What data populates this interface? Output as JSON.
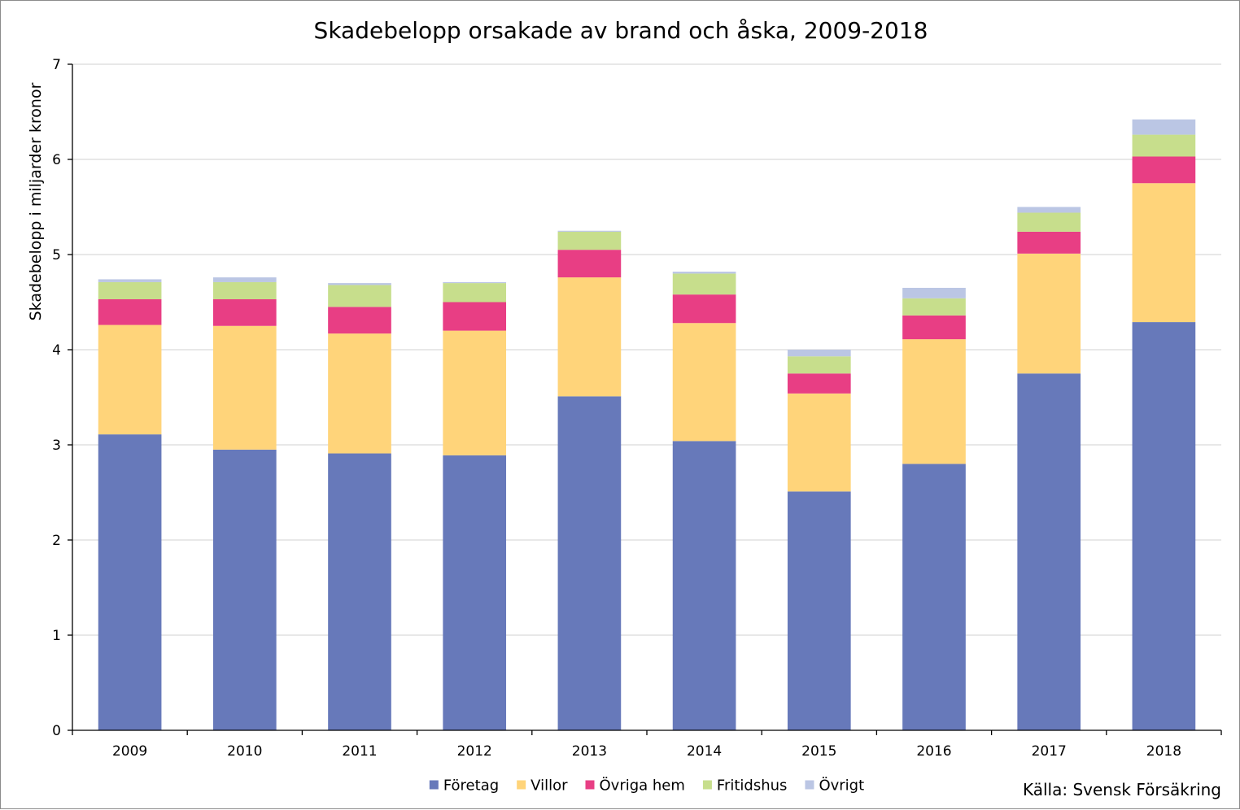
{
  "chart_data": {
    "type": "bar",
    "stacked": true,
    "title": "Skadebelopp orsakade av brand och åska, 2009-2018",
    "ylabel": "Skadebelopp i miljarder kronor",
    "xlabel": "",
    "ylim": [
      0,
      7
    ],
    "yticks": [
      "0",
      "1",
      "2",
      "3",
      "4",
      "5",
      "6",
      "7"
    ],
    "grid": true,
    "legend_position": "bottom",
    "categories": [
      "2009",
      "2010",
      "2011",
      "2012",
      "2013",
      "2014",
      "2015",
      "2016",
      "2017",
      "2018"
    ],
    "series": [
      {
        "name": "Företag",
        "color": "#6779BA",
        "values": [
          3.11,
          2.95,
          2.91,
          2.89,
          3.51,
          3.04,
          2.51,
          2.8,
          3.75,
          4.29
        ]
      },
      {
        "name": "Villor",
        "color": "#FFD47A",
        "values": [
          1.15,
          1.3,
          1.26,
          1.31,
          1.25,
          1.24,
          1.03,
          1.31,
          1.26,
          1.46
        ]
      },
      {
        "name": "Övriga hem",
        "color": "#E83E84",
        "values": [
          0.27,
          0.28,
          0.28,
          0.3,
          0.29,
          0.3,
          0.21,
          0.25,
          0.23,
          0.28
        ]
      },
      {
        "name": "Fritidshus",
        "color": "#C7DE8C",
        "values": [
          0.18,
          0.18,
          0.23,
          0.2,
          0.19,
          0.22,
          0.18,
          0.18,
          0.2,
          0.23
        ]
      },
      {
        "name": "Övrigt",
        "color": "#BBC6E4",
        "values": [
          0.03,
          0.05,
          0.02,
          0.01,
          0.01,
          0.02,
          0.07,
          0.11,
          0.06,
          0.16
        ]
      }
    ],
    "source": "Källa: Svensk Försäkring"
  }
}
